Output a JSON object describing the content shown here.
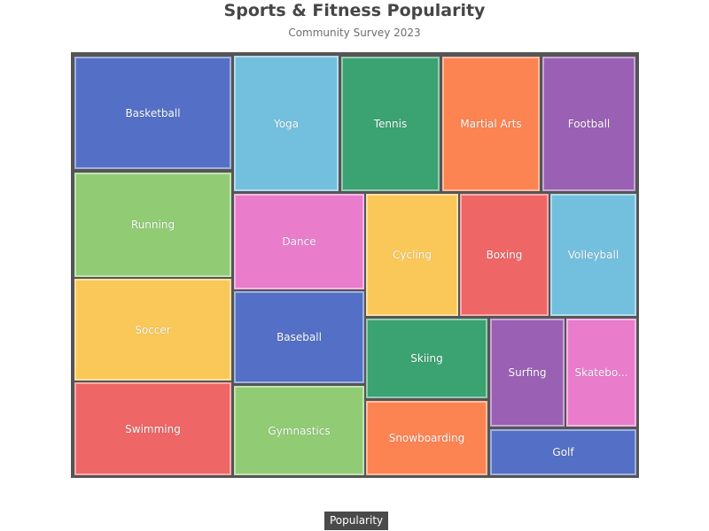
{
  "chart_data": {
    "type": "treemap",
    "title": "Sports & Fitness Popularity",
    "subtitle": "Community Survey 2023",
    "root": "Popularity",
    "items": [
      {
        "name": "Basketball",
        "color": "#5470c6",
        "label": "Basketball"
      },
      {
        "name": "Yoga",
        "color": "#73c0de",
        "label": "Yoga"
      },
      {
        "name": "Tennis",
        "color": "#3ba272",
        "label": "Tennis"
      },
      {
        "name": "Martial Arts",
        "color": "#fc8452",
        "label": "Martial Arts"
      },
      {
        "name": "Football",
        "color": "#9a60b4",
        "label": "Football"
      },
      {
        "name": "Running",
        "color": "#91cc75",
        "label": "Running"
      },
      {
        "name": "Dance",
        "color": "#ea7ccc",
        "label": "Dance"
      },
      {
        "name": "Cycling",
        "color": "#fac858",
        "label": "Cycling"
      },
      {
        "name": "Boxing",
        "color": "#ee6666",
        "label": "Boxing"
      },
      {
        "name": "Volleyball",
        "color": "#73c0de",
        "label": "Volleyball"
      },
      {
        "name": "Soccer",
        "color": "#fac858",
        "label": "Soccer"
      },
      {
        "name": "Baseball",
        "color": "#5470c6",
        "label": "Baseball"
      },
      {
        "name": "Skiing",
        "color": "#3ba272",
        "label": "Skiing"
      },
      {
        "name": "Surfing",
        "color": "#9a60b4",
        "label": "Surfing"
      },
      {
        "name": "Skateboarding",
        "color": "#ea7ccc",
        "label": "Skatebo..."
      },
      {
        "name": "Swimming",
        "color": "#ee6666",
        "label": "Swimming"
      },
      {
        "name": "Gymnastics",
        "color": "#91cc75",
        "label": "Gymnastics"
      },
      {
        "name": "Snowboarding",
        "color": "#fc8452",
        "label": "Snowboarding"
      },
      {
        "name": "Golf",
        "color": "#5470c6",
        "label": "Golf"
      }
    ]
  }
}
